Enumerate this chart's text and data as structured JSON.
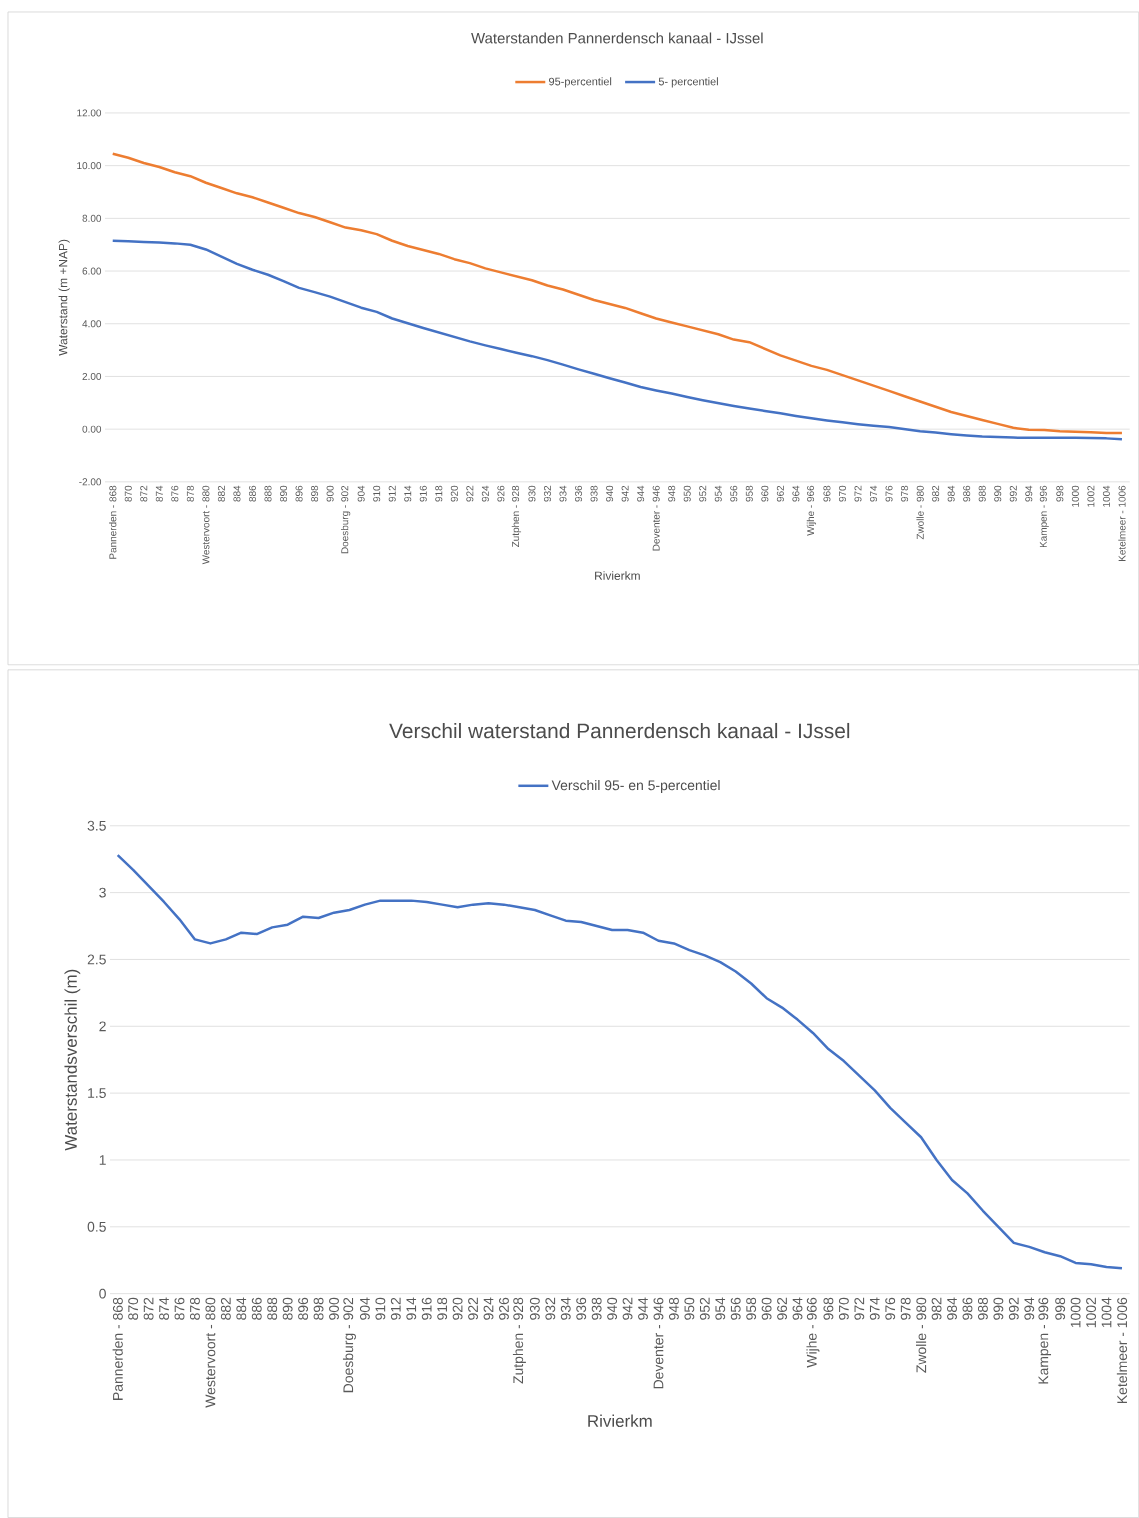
{
  "chart_data": [
    {
      "type": "line",
      "title": "Waterstanden Pannerdensch  kanaal - IJssel",
      "xlabel": "Rivierkm",
      "ylabel": "Waterstand (m +NAP)",
      "categories": [
        "Pannerden - 868",
        "870",
        "872",
        "874",
        "876",
        "878",
        "Westervoort - 880",
        "882",
        "884",
        "886",
        "888",
        "890",
        "896",
        "898",
        "900",
        "Doesburg - 902",
        "904",
        "910",
        "912",
        "914",
        "916",
        "918",
        "920",
        "922",
        "924",
        "926",
        "Zutphen - 928",
        "930",
        "932",
        "934",
        "936",
        "938",
        "940",
        "942",
        "944",
        "Deventer - 946",
        "948",
        "950",
        "952",
        "954",
        "956",
        "958",
        "960",
        "962",
        "964",
        "Wijhe - 966",
        "968",
        "970",
        "972",
        "974",
        "976",
        "978",
        "Zwolle - 980",
        "982",
        "984",
        "986",
        "988",
        "990",
        "992",
        "994",
        "Kampen - 996",
        "998",
        "1000",
        "1002",
        "1004",
        "Ketelmeer - 1006"
      ],
      "series": [
        {
          "name": "95-percentiel",
          "color": "#ed7d31",
          "values": [
            10.45,
            10.3,
            10.1,
            9.95,
            9.75,
            9.6,
            9.35,
            9.15,
            8.95,
            8.8,
            8.6,
            8.4,
            8.2,
            8.05,
            7.85,
            7.65,
            7.55,
            7.4,
            7.15,
            6.95,
            6.8,
            6.65,
            6.45,
            6.3,
            6.1,
            5.95,
            5.8,
            5.65,
            5.45,
            5.3,
            5.1,
            4.9,
            4.75,
            4.6,
            4.4,
            4.2,
            4.05,
            3.9,
            3.75,
            3.6,
            3.4,
            3.3,
            3.05,
            2.8,
            2.6,
            2.4,
            2.25,
            2.05,
            1.85,
            1.65,
            1.45,
            1.25,
            1.05,
            0.85,
            0.65,
            0.5,
            0.35,
            0.2,
            0.05,
            -0.02,
            -0.03,
            -0.08,
            -0.1,
            -0.12,
            -0.15,
            -0.15
          ]
        },
        {
          "name": "5- percentiel",
          "color": "#4472c4",
          "values": [
            7.15,
            7.13,
            7.1,
            7.08,
            7.05,
            7.0,
            6.82,
            6.55,
            6.27,
            6.05,
            5.86,
            5.62,
            5.36,
            5.2,
            5.03,
            4.82,
            4.61,
            4.45,
            4.2,
            4.02,
            3.84,
            3.67,
            3.5,
            3.33,
            3.18,
            3.04,
            2.9,
            2.77,
            2.62,
            2.45,
            2.27,
            2.1,
            1.93,
            1.77,
            1.6,
            1.47,
            1.35,
            1.22,
            1.1,
            0.99,
            0.88,
            0.78,
            0.69,
            0.6,
            0.5,
            0.41,
            0.33,
            0.26,
            0.19,
            0.13,
            0.08,
            0.0,
            -0.08,
            -0.13,
            -0.19,
            -0.24,
            -0.28,
            -0.3,
            -0.32,
            -0.33,
            -0.33,
            -0.33,
            -0.33,
            -0.34,
            -0.35,
            -0.38
          ]
        }
      ],
      "ylim": [
        -2,
        12
      ],
      "yticks": [
        {
          "value": -2,
          "label": "-2.00"
        },
        {
          "value": 0,
          "label": "0.00"
        },
        {
          "value": 2,
          "label": "2.00"
        },
        {
          "value": 4,
          "label": "4.00"
        },
        {
          "value": 6,
          "label": "6.00"
        },
        {
          "value": 8,
          "label": "8.00"
        },
        {
          "value": 10,
          "label": "10.00"
        },
        {
          "value": 12,
          "label": "12.00"
        }
      ],
      "grid": "y",
      "legend": "top"
    },
    {
      "type": "line",
      "title": "Verschil waterstand Pannerdensch  kanaal - IJssel",
      "xlabel": "Rivierkm",
      "ylabel": "Waterstandsverschil (m)",
      "categories": [
        "Pannerden - 868",
        "870",
        "872",
        "874",
        "876",
        "878",
        "Westervoort - 880",
        "882",
        "884",
        "886",
        "888",
        "890",
        "896",
        "898",
        "900",
        "Doesburg - 902",
        "904",
        "910",
        "912",
        "914",
        "916",
        "918",
        "920",
        "922",
        "924",
        "926",
        "Zutphen - 928",
        "930",
        "932",
        "934",
        "936",
        "938",
        "940",
        "942",
        "944",
        "Deventer - 946",
        "948",
        "950",
        "952",
        "954",
        "956",
        "958",
        "960",
        "962",
        "964",
        "Wijhe - 966",
        "968",
        "970",
        "972",
        "974",
        "976",
        "978",
        "Zwolle - 980",
        "982",
        "984",
        "986",
        "988",
        "990",
        "992",
        "994",
        "Kampen - 996",
        "998",
        "1000",
        "1002",
        "1004",
        "Ketelmeer - 1006"
      ],
      "series": [
        {
          "name": "Verschil 95- en 5-percentiel",
          "color": "#4472c4",
          "values": [
            3.28,
            3.17,
            3.05,
            2.93,
            2.8,
            2.65,
            2.62,
            2.65,
            2.7,
            2.69,
            2.74,
            2.76,
            2.82,
            2.81,
            2.85,
            2.87,
            2.91,
            2.94,
            2.94,
            2.94,
            2.93,
            2.91,
            2.89,
            2.91,
            2.92,
            2.91,
            2.89,
            2.87,
            2.83,
            2.79,
            2.78,
            2.75,
            2.72,
            2.72,
            2.7,
            2.64,
            2.62,
            2.57,
            2.53,
            2.48,
            2.41,
            2.32,
            2.21,
            2.14,
            2.05,
            1.95,
            1.83,
            1.74,
            1.63,
            1.52,
            1.39,
            1.28,
            1.17,
            1.0,
            0.85,
            0.75,
            0.62,
            0.5,
            0.38,
            0.35,
            0.31,
            0.28,
            0.23,
            0.22,
            0.2,
            0.19
          ]
        }
      ],
      "ylim": [
        0,
        3.5
      ],
      "yticks": [
        0,
        0.5,
        1,
        1.5,
        2,
        2.5,
        3,
        3.5
      ],
      "grid": "y",
      "legend": "top"
    }
  ]
}
